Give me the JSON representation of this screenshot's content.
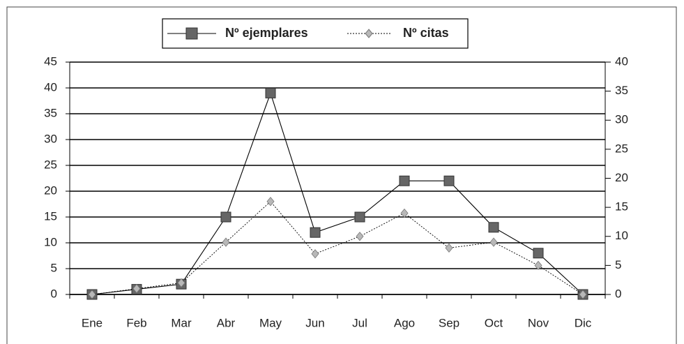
{
  "chart_data": {
    "type": "line",
    "categories": [
      "Ene",
      "Feb",
      "Mar",
      "Abr",
      "May",
      "Jun",
      "Jul",
      "Ago",
      "Sep",
      "Oct",
      "Nov",
      "Dic"
    ],
    "series": [
      {
        "name": "Nº ejemplares",
        "color": "#666666",
        "marker": "square",
        "line_style": "solid",
        "values": [
          0,
          1,
          2,
          15,
          39,
          12,
          15,
          22,
          22,
          13,
          8,
          0
        ]
      },
      {
        "name": "Nº citas",
        "color": "#b8b8b8",
        "marker": "diamond",
        "line_style": "dotted",
        "axis": "y2",
        "values": [
          0,
          1,
          2,
          9,
          16,
          7,
          10,
          14,
          8,
          9,
          5,
          0
        ]
      }
    ],
    "ylim": [
      0,
      45
    ],
    "yticks": [
      0,
      5,
      10,
      15,
      20,
      25,
      30,
      35,
      40,
      45
    ],
    "y2lim": [
      0,
      40
    ],
    "y2ticks": [
      0,
      5,
      10,
      15,
      20,
      25,
      30,
      35,
      40
    ],
    "grid": true,
    "legend": "top"
  }
}
